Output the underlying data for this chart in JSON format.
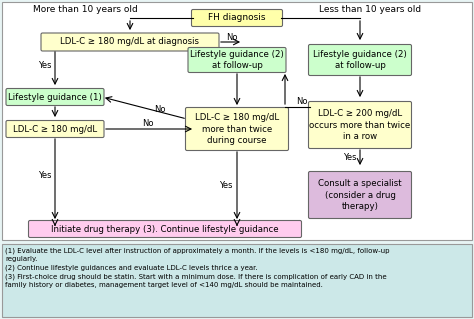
{
  "bg_color": "#e8f4f4",
  "footnote_bg": "#cce8e8",
  "box_yellow": "#ffffcc",
  "box_green": "#ccffcc",
  "box_pink": "#ffccee",
  "box_purple": "#ddbbdd",
  "box_fh": "#ffffaa",
  "footnotes": [
    "(1) Evaluate the LDL-C level after instruction of approximately a month. If the levels is <180 mg/dL, follow-up\nregularly.",
    "(2) Continue lifestyle guidances and evaluate LDL-C levels thrice a year.",
    "(3) First-choice drug should be statin. Start with a minimum dose. If there is complication of early CAD in the\nfamily history or diabetes, management target level of <140 mg/dL should be maintained."
  ],
  "header_left": "More than 10 years old",
  "header_right": "Less than 10 years old",
  "fh_label": "FH diagnosis",
  "ldl_diag": "LDL-C ≥ 180 mg/dL at diagnosis",
  "lg1": "Lifestyle guidance (1)",
  "ldl_left": "LDL-C ≥ 180 mg/dL",
  "lg2_center": "Lifestyle guidance (2)\nat follow-up",
  "ldl_course": "LDL-C ≥ 180 mg/dL\nmore than twice\nduring course",
  "lg2_right": "Lifestyle guidance (2)\nat follow-up",
  "ldl_right": "LDL-C ≥ 200 mg/dL\noccurs more than twice\nin a row",
  "specialist": "Consult a specialist\n(consider a drug\ntherapy)",
  "drug": "Initiate drug therapy (3). Continue lifestyle guidance"
}
